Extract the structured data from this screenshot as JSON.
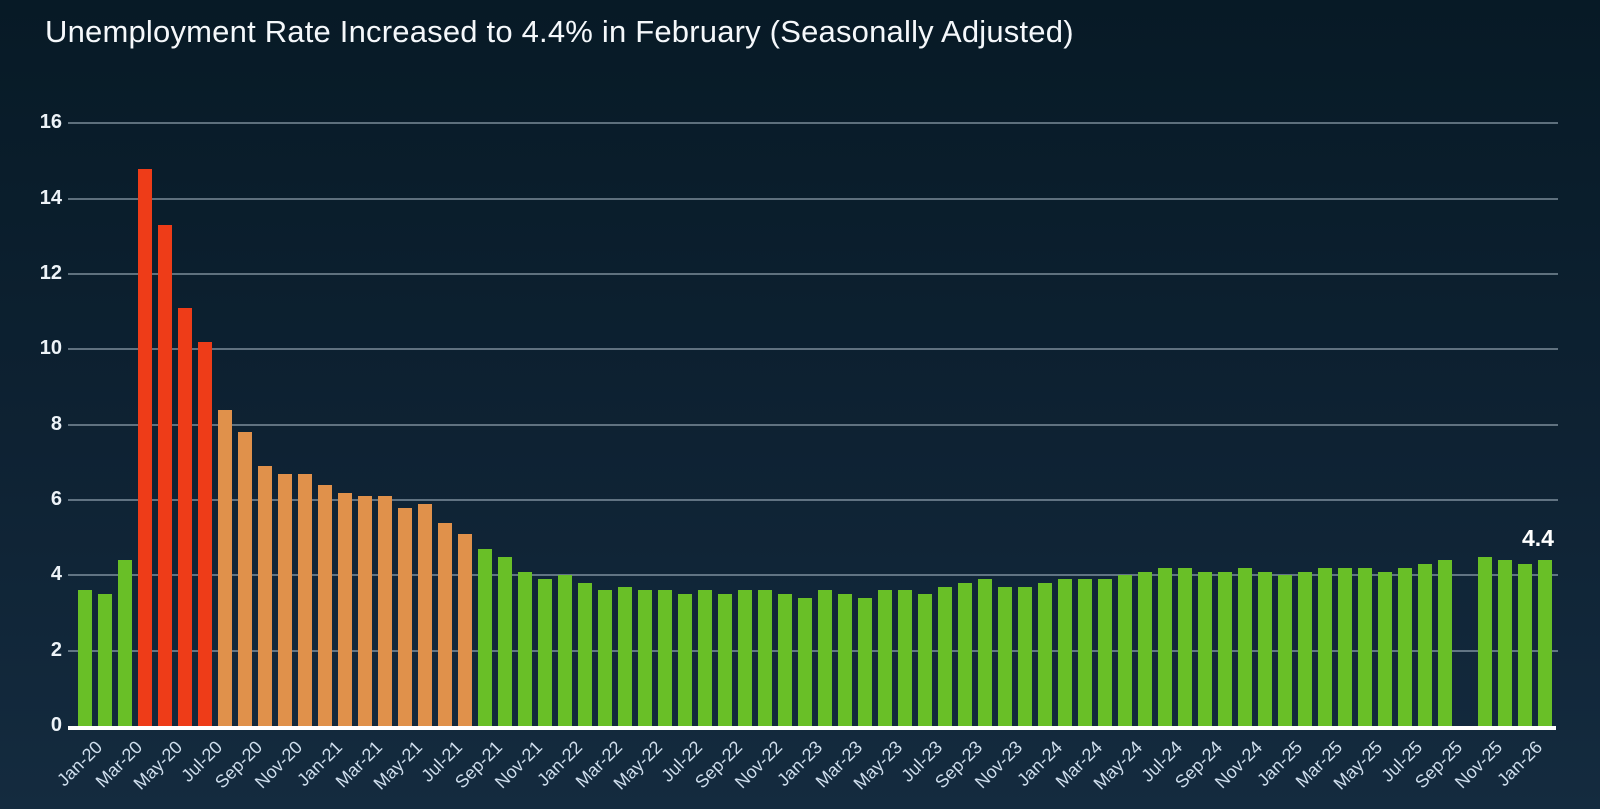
{
  "chart_data": {
    "type": "bar",
    "title": "Unemployment Rate Increased to 4.4% in February (Seasonally Adjusted)",
    "xlabel": "",
    "ylabel": "",
    "ylim": [
      0,
      16
    ],
    "y_ticks": [
      0,
      2,
      4,
      6,
      8,
      10,
      12,
      14,
      16
    ],
    "grid": true,
    "legend": "none",
    "annotation": {
      "text": "4.4",
      "month": "Feb-26"
    },
    "colors": {
      "green": "#69bf27",
      "red": "#ee3c18",
      "orange": "#e0914b",
      "axis_line": "#ffffff",
      "background_top": "#071a26",
      "background_bottom": "#142b3f"
    },
    "color_ranges": [
      {
        "start_index": 3,
        "end_index": 6,
        "color_key": "red"
      },
      {
        "start_index": 7,
        "end_index": 19,
        "color_key": "orange"
      }
    ],
    "default_color_key": "green",
    "missing_data_note": "Oct-25 has no bar (gap in series)",
    "x_tick_labels": [
      "Jan-20",
      "Mar-20",
      "May-20",
      "Jul-20",
      "Sep-20",
      "Nov-20",
      "Jan-21",
      "Mar-21",
      "May-21",
      "Jul-21",
      "Sep-21",
      "Nov-21",
      "Jan-22",
      "Mar-22",
      "May-22",
      "Jul-22",
      "Sep-22",
      "Nov-22",
      "Jan-23",
      "Mar-23",
      "May-23",
      "Jul-23",
      "Sep-23",
      "Nov-23",
      "Jan-24",
      "Mar-24",
      "May-24",
      "Jul-24",
      "Sep-24",
      "Nov-24",
      "Jan-25",
      "Mar-25",
      "May-25",
      "Jul-25",
      "Sep-25",
      "Nov-25",
      "Jan-26"
    ],
    "categories": [
      "Jan-20",
      "Feb-20",
      "Mar-20",
      "Apr-20",
      "May-20",
      "Jun-20",
      "Jul-20",
      "Aug-20",
      "Sep-20",
      "Oct-20",
      "Nov-20",
      "Dec-20",
      "Jan-21",
      "Feb-21",
      "Mar-21",
      "Apr-21",
      "May-21",
      "Jun-21",
      "Jul-21",
      "Aug-21",
      "Sep-21",
      "Oct-21",
      "Nov-21",
      "Dec-21",
      "Jan-22",
      "Feb-22",
      "Mar-22",
      "Apr-22",
      "May-22",
      "Jun-22",
      "Jul-22",
      "Aug-22",
      "Sep-22",
      "Oct-22",
      "Nov-22",
      "Dec-22",
      "Jan-23",
      "Feb-23",
      "Mar-23",
      "Apr-23",
      "May-23",
      "Jun-23",
      "Jul-23",
      "Aug-23",
      "Sep-23",
      "Oct-23",
      "Nov-23",
      "Dec-23",
      "Jan-24",
      "Feb-24",
      "Mar-24",
      "Apr-24",
      "May-24",
      "Jun-24",
      "Jul-24",
      "Aug-24",
      "Sep-24",
      "Oct-24",
      "Nov-24",
      "Dec-24",
      "Jan-25",
      "Feb-25",
      "Mar-25",
      "Apr-25",
      "May-25",
      "Jun-25",
      "Jul-25",
      "Aug-25",
      "Sep-25",
      "Oct-25",
      "Nov-25",
      "Dec-25",
      "Jan-26",
      "Feb-26"
    ],
    "values": [
      3.6,
      3.5,
      4.4,
      14.8,
      13.3,
      11.1,
      10.2,
      8.4,
      7.8,
      6.9,
      6.7,
      6.7,
      6.4,
      6.2,
      6.1,
      6.1,
      5.8,
      5.9,
      5.4,
      5.1,
      4.7,
      4.5,
      4.1,
      3.9,
      4.0,
      3.8,
      3.6,
      3.7,
      3.6,
      3.6,
      3.5,
      3.6,
      3.5,
      3.6,
      3.6,
      3.5,
      3.4,
      3.6,
      3.5,
      3.4,
      3.6,
      3.6,
      3.5,
      3.7,
      3.8,
      3.9,
      3.7,
      3.7,
      3.8,
      3.9,
      3.9,
      3.9,
      4.0,
      4.1,
      4.2,
      4.2,
      4.1,
      4.1,
      4.2,
      4.1,
      4.0,
      4.1,
      4.2,
      4.2,
      4.2,
      4.1,
      4.2,
      4.3,
      4.4,
      null,
      4.5,
      4.4,
      4.3,
      4.4
    ]
  }
}
